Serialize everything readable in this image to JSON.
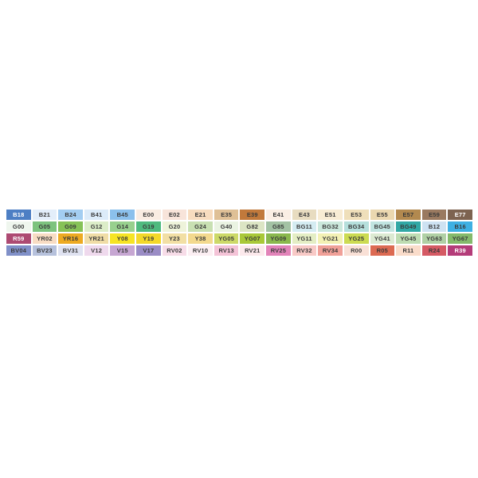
{
  "palette": {
    "default_label_color": "#3a3a3a",
    "rows": [
      [
        {
          "code": "B18",
          "bg": "#4d7fc4",
          "fg": "#ffffff"
        },
        {
          "code": "B21",
          "bg": "#e3eefa"
        },
        {
          "code": "B24",
          "bg": "#a3cdf1"
        },
        {
          "code": "B41",
          "bg": "#dcebf9"
        },
        {
          "code": "B45",
          "bg": "#8bc0ec"
        },
        {
          "code": "E00",
          "bg": "#f9ece2"
        },
        {
          "code": "E02",
          "bg": "#f8e4da"
        },
        {
          "code": "E21",
          "bg": "#f7dcbf"
        },
        {
          "code": "E35",
          "bg": "#dfc096"
        },
        {
          "code": "E39",
          "bg": "#c1793b"
        },
        {
          "code": "E41",
          "bg": "#faeee4"
        },
        {
          "code": "E43",
          "bg": "#e8dcc0"
        },
        {
          "code": "E51",
          "bg": "#f8ecd4"
        },
        {
          "code": "E53",
          "bg": "#efdfba"
        },
        {
          "code": "E55",
          "bg": "#ebd8b0"
        },
        {
          "code": "E57",
          "bg": "#b2894f"
        },
        {
          "code": "E59",
          "bg": "#9a7a60"
        },
        {
          "code": "E77",
          "bg": "#7d6350",
          "fg": "#ffffff"
        }
      ],
      [
        {
          "code": "G00",
          "bg": "#eff6ee"
        },
        {
          "code": "G05",
          "bg": "#7dc37e"
        },
        {
          "code": "G09",
          "bg": "#86c257"
        },
        {
          "code": "G12",
          "bg": "#dcedc8"
        },
        {
          "code": "G14",
          "bg": "#98d08e"
        },
        {
          "code": "G19",
          "bg": "#4fba7f"
        },
        {
          "code": "G20",
          "bg": "#eef3da"
        },
        {
          "code": "G24",
          "bg": "#c8e0b2"
        },
        {
          "code": "G40",
          "bg": "#eaf3e2"
        },
        {
          "code": "G82",
          "bg": "#dce5c4"
        },
        {
          "code": "G85",
          "bg": "#a3c2a4"
        },
        {
          "code": "BG11",
          "bg": "#d4ecf2"
        },
        {
          "code": "BG32",
          "bg": "#cbe8dc"
        },
        {
          "code": "BG34",
          "bg": "#b5dfdc"
        },
        {
          "code": "BG45",
          "bg": "#c0e4e0"
        },
        {
          "code": "BG49",
          "bg": "#31a8a5"
        },
        {
          "code": "B12",
          "bg": "#cde2f2"
        },
        {
          "code": "B16",
          "bg": "#3eb0e3"
        }
      ],
      [
        {
          "code": "R59",
          "bg": "#ad4a72",
          "fg": "#ffffff"
        },
        {
          "code": "YR02",
          "bg": "#f8dcc3"
        },
        {
          "code": "YR16",
          "bg": "#edaa22"
        },
        {
          "code": "YR21",
          "bg": "#f0dda6"
        },
        {
          "code": "Y08",
          "bg": "#f6e424"
        },
        {
          "code": "Y19",
          "bg": "#f3d829"
        },
        {
          "code": "Y23",
          "bg": "#f2dfa4"
        },
        {
          "code": "Y38",
          "bg": "#f3d98e"
        },
        {
          "code": "YG05",
          "bg": "#ccd968"
        },
        {
          "code": "YG07",
          "bg": "#a9c838"
        },
        {
          "code": "YG09",
          "bg": "#8ab84d"
        },
        {
          "code": "YG11",
          "bg": "#e4eec4"
        },
        {
          "code": "YG21",
          "bg": "#f3f1b4"
        },
        {
          "code": "YG25",
          "bg": "#ccdb52"
        },
        {
          "code": "YG41",
          "bg": "#dcead2"
        },
        {
          "code": "YG45",
          "bg": "#bedcb2"
        },
        {
          "code": "YG63",
          "bg": "#b0d0a5"
        },
        {
          "code": "YG67",
          "bg": "#84ba6b"
        }
      ],
      [
        {
          "code": "BV04",
          "bg": "#8090c8"
        },
        {
          "code": "BV23",
          "bg": "#b6c1dc"
        },
        {
          "code": "BV31",
          "bg": "#dfe2f1"
        },
        {
          "code": "V12",
          "bg": "#efd9ed"
        },
        {
          "code": "V15",
          "bg": "#c6a6d2"
        },
        {
          "code": "V17",
          "bg": "#9a8cc5"
        },
        {
          "code": "RV02",
          "bg": "#f7dce8"
        },
        {
          "code": "RV10",
          "bg": "#fceff3"
        },
        {
          "code": "RV13",
          "bg": "#f4c3d7"
        },
        {
          "code": "RV21",
          "bg": "#fce9ec"
        },
        {
          "code": "RV25",
          "bg": "#e283b9"
        },
        {
          "code": "RV32",
          "bg": "#f8c9c6"
        },
        {
          "code": "RV34",
          "bg": "#f0a098"
        },
        {
          "code": "R00",
          "bg": "#f9e0d6"
        },
        {
          "code": "R05",
          "bg": "#dc6a52"
        },
        {
          "code": "R11",
          "bg": "#fadcca"
        },
        {
          "code": "R24",
          "bg": "#d55a64"
        },
        {
          "code": "R39",
          "bg": "#b43c79",
          "fg": "#ffffff"
        }
      ]
    ]
  }
}
